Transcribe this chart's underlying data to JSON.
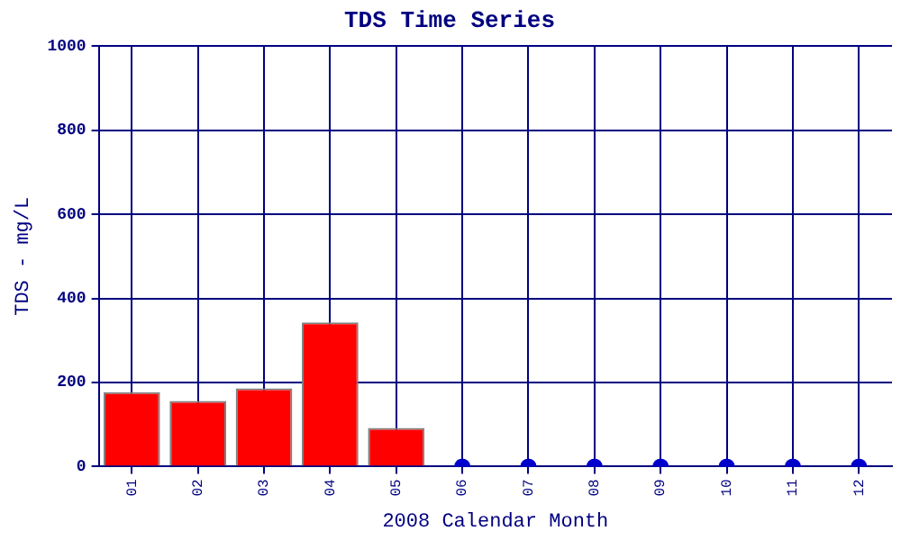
{
  "chart_data": {
    "type": "bar",
    "title": "TDS Time Series",
    "xlabel": "2008 Calendar Month",
    "ylabel": "TDS - mg/L",
    "categories": [
      "01",
      "02",
      "03",
      "04",
      "05",
      "06",
      "07",
      "08",
      "09",
      "10",
      "11",
      "12"
    ],
    "series": [
      {
        "color": "#ff0000",
        "values": [
          177,
          156,
          186,
          343,
          92,
          null,
          null,
          null,
          null,
          null,
          null,
          null
        ]
      },
      {
        "type": "scatter",
        "color": "#0000cc",
        "marker": "circle",
        "values": [
          null,
          null,
          null,
          null,
          null,
          0,
          0,
          0,
          0,
          0,
          0,
          0
        ]
      }
    ],
    "ylim": [
      0,
      1000
    ],
    "yticks": [
      0,
      200,
      400,
      600,
      800,
      1000
    ],
    "grid": true,
    "legend": false
  }
}
